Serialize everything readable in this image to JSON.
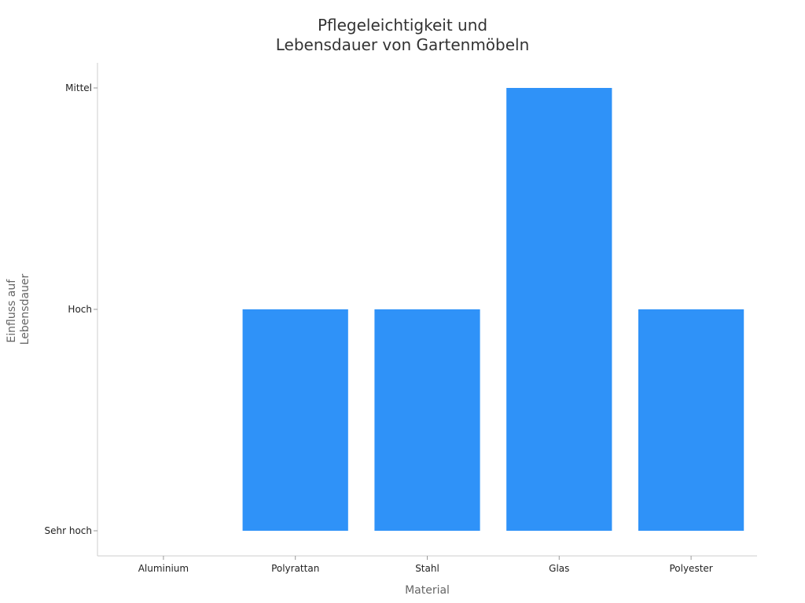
{
  "chart_data": {
    "type": "bar",
    "title_lines": [
      "Pflegeleichtigkeit und",
      "Lebensdauer von Gartenmöbeln"
    ],
    "xlabel": "Material",
    "ylabel_lines": [
      "Einfluss auf",
      "Lebensdauer"
    ],
    "categories": [
      "Aluminium",
      "Polyrattan",
      "Stahl",
      "Glas",
      "Polyester"
    ],
    "y_categories": [
      "Sehr hoch",
      "Hoch",
      "Mittel"
    ],
    "values": [
      "Sehr hoch",
      "Hoch",
      "Hoch",
      "Mittel",
      "Hoch"
    ],
    "bar_color": "#2F92F8",
    "grid": false,
    "legend": "none"
  }
}
